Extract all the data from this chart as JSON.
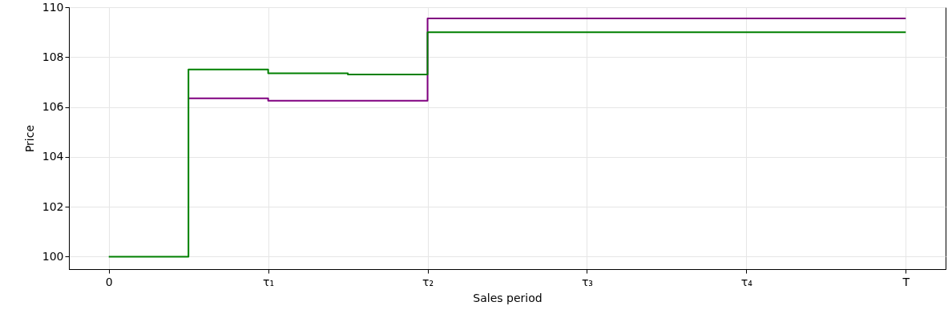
{
  "chart_data": {
    "type": "step",
    "xlabel": "Sales period",
    "ylabel": "Price",
    "categories": [
      "0",
      null,
      "τ₁",
      null,
      "τ₂",
      null,
      "τ₃",
      null,
      "τ₄",
      null,
      "T"
    ],
    "ylim": [
      99.5,
      110
    ],
    "yticks": [
      100,
      102,
      104,
      106,
      108,
      110
    ],
    "grid": true,
    "series": [
      {
        "color": "#800080",
        "values": [
          null,
          106.35,
          106.25,
          106.25,
          109.55,
          109.55,
          109.55,
          109.55,
          109.55,
          109.55,
          109.55
        ]
      },
      {
        "color": "#008000",
        "values": [
          100,
          107.5,
          107.35,
          107.3,
          109.0,
          109.0,
          109.0,
          109.0,
          109.0,
          109.0,
          109.0
        ]
      }
    ]
  }
}
